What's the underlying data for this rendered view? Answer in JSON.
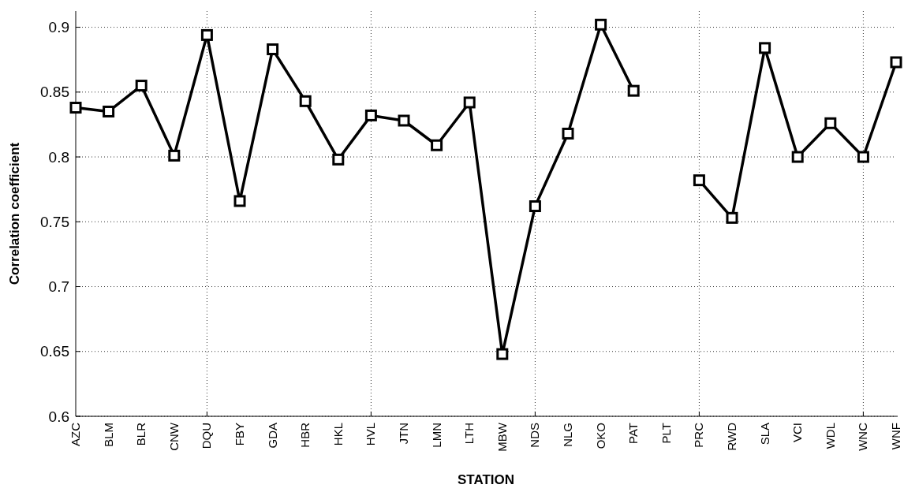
{
  "chart_data": {
    "type": "line",
    "xlabel": "STATION",
    "ylabel": "Correlation coefficient",
    "categories": [
      "AZC",
      "BLM",
      "BLR",
      "CNW",
      "DQU",
      "FBY",
      "GDA",
      "HBR",
      "HKL",
      "HVL",
      "JTN",
      "LMN",
      "LTH",
      "MBW",
      "NDS",
      "NLG",
      "OKO",
      "PAT",
      "PLT",
      "PRC",
      "RWD",
      "SLA",
      "VCI",
      "WDL",
      "WNC",
      "WNF"
    ],
    "series": [
      {
        "color": "#000000",
        "values": [
          0.838,
          0.835,
          0.855,
          0.801,
          0.894,
          0.766,
          0.883,
          0.843,
          0.798,
          0.832,
          0.828,
          0.809,
          0.842,
          0.648,
          0.762,
          0.818,
          0.902,
          0.851,
          null,
          0.782,
          0.753,
          0.884,
          0.8,
          0.826,
          0.8,
          0.873
        ]
      }
    ],
    "ylim": [
      0.6,
      0.9125
    ],
    "yticks": [
      0.6,
      0.65,
      0.7,
      0.75,
      0.8,
      0.85,
      0.9
    ],
    "grid": true,
    "marker": "square",
    "line_style": "solid"
  }
}
